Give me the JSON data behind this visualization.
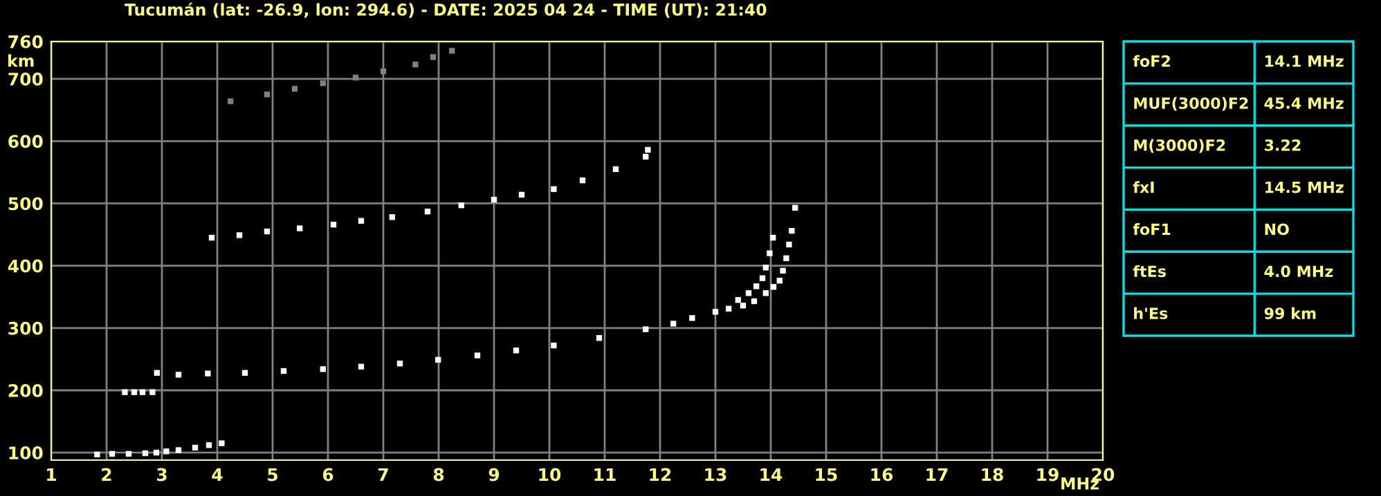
{
  "chart_data": [
    {
      "type": "scatter",
      "title": "Tucumán (lat: -26.9, lon: 294.6) - DATE: 2025 04 24 - TIME (UT): 21:40",
      "xlabel": "MHz",
      "ylabel": "km",
      "xlim": [
        1,
        20
      ],
      "ylim": [
        88,
        760
      ],
      "xticks": [
        1,
        2,
        3,
        4,
        5,
        6,
        7,
        8,
        9,
        10,
        11,
        12,
        13,
        14,
        15,
        16,
        17,
        18,
        19,
        20
      ],
      "yticks": [
        100,
        200,
        300,
        400,
        500,
        600,
        700,
        760
      ],
      "grid": true,
      "marker": "square",
      "series": [
        {
          "color": "#ffffff",
          "x": [
            2.91,
            3.3,
            3.83,
            4.5,
            5.2,
            5.91,
            6.6,
            7.3,
            7.99,
            8.7,
            9.4,
            10.08,
            10.9,
            11.74,
            12.24,
            12.58,
            13.0,
            13.24,
            13.41,
            13.6,
            13.74,
            13.85,
            13.91,
            13.98,
            14.04
          ],
          "values": [
            228,
            225,
            227,
            228,
            231,
            234,
            238,
            243,
            249,
            256,
            264,
            272,
            284,
            298,
            307,
            316,
            326,
            331,
            345,
            356,
            367,
            380,
            397,
            420,
            445
          ]
        },
        {
          "color": "#ffffff",
          "x": [
            13.5,
            13.7,
            13.91,
            14.05,
            14.16,
            14.22,
            14.28,
            14.33,
            14.38,
            14.44
          ],
          "values": [
            336,
            343,
            356,
            366,
            376,
            392,
            412,
            434,
            456,
            493
          ]
        },
        {
          "color": "#ffffff",
          "x": [
            1.83,
            2.1,
            2.4,
            2.7,
            2.9,
            3.08,
            3.3,
            3.6,
            3.85,
            4.08
          ],
          "values": [
            97,
            98,
            98,
            99,
            100,
            102,
            104,
            108,
            112,
            115
          ]
        },
        {
          "color": "#ffffff",
          "x": [
            2.33,
            2.5,
            2.65,
            2.83
          ],
          "values": [
            197,
            197,
            197,
            197
          ]
        },
        {
          "color": "#ffffff",
          "x": [
            3.9,
            4.4,
            4.9,
            5.49,
            6.1,
            6.6,
            7.16,
            7.8,
            8.41,
            9.0,
            9.5,
            10.08,
            10.6,
            11.2,
            11.74,
            11.78
          ],
          "values": [
            445,
            449,
            455,
            460,
            466,
            472,
            478,
            487,
            497,
            506,
            514,
            523,
            537,
            555,
            575,
            586
          ]
        },
        {
          "color": "#808080",
          "x": [
            4.24,
            4.9,
            5.4,
            5.91,
            6.5,
            7.0,
            7.58,
            7.9,
            8.24
          ],
          "values": [
            664,
            675,
            684,
            693,
            702,
            712,
            723,
            735,
            745
          ]
        }
      ]
    },
    {
      "type": "other",
      "annotations": [
        "foF2",
        "14.1 MHz",
        "MUF(3000)F2",
        "45.4 MHz",
        "M(3000)F2",
        "3.22",
        "fxI",
        "14.5 MHz",
        "foF1",
        "NO",
        "ftEs",
        "4.0 MHz",
        "h'Es",
        "99 km"
      ]
    }
  ]
}
